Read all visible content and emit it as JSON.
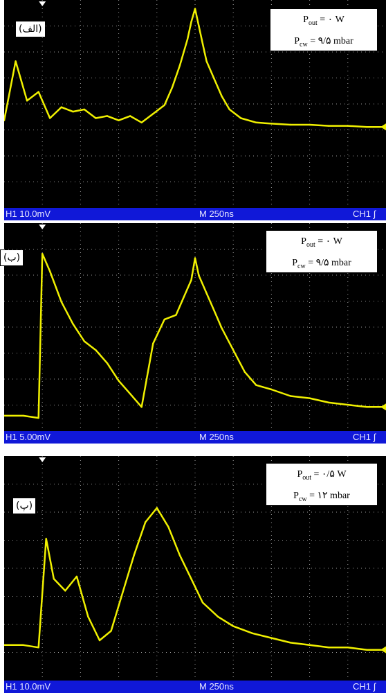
{
  "chart_data": [
    {
      "type": "line",
      "panel_label": "(الف)",
      "legend": [
        "P_out = ۰ W",
        "P_cw = ۹/۵ mbar"
      ],
      "legend_parts": {
        "p_out_sym": "P",
        "p_out_sub": "out",
        "p_out_val": "= ۰ W",
        "p_cw_sym": "P",
        "p_cw_sub": "cw",
        "p_cw_val": "= ۹/۵ mbar"
      },
      "status": {
        "channel_scale": "H1 10.0mV",
        "timebase": "M 250ns",
        "trigger": "CH1 ∫"
      },
      "color": "#f0f000",
      "x": [
        0,
        0.3,
        0.6,
        0.9,
        1.2,
        1.5,
        1.8,
        2.1,
        2.4,
        2.7,
        3.0,
        3.3,
        3.6,
        3.9,
        4.2,
        4.4,
        4.6,
        4.8,
        4.9,
        5.0,
        5.1,
        5.2,
        5.3,
        5.5,
        5.7,
        5.9,
        6.2,
        6.6,
        7.0,
        7.5,
        8.0,
        8.5,
        9.0,
        9.5,
        10.0
      ],
      "y": [
        0.5,
        3.2,
        1.4,
        1.8,
        0.6,
        1.1,
        0.9,
        1.0,
        0.6,
        0.7,
        0.5,
        0.7,
        0.4,
        0.8,
        1.2,
        2.0,
        3.0,
        4.2,
        5.0,
        5.6,
        4.8,
        4.0,
        3.2,
        2.4,
        1.6,
        1.0,
        0.6,
        0.4,
        0.35,
        0.3,
        0.3,
        0.25,
        0.25,
        0.2,
        0.2
      ],
      "xlim": [
        0,
        10
      ],
      "ylim": [
        -3.5,
        6.0
      ],
      "grid": true
    },
    {
      "type": "line",
      "panel_label": "(ب)",
      "legend": [
        "P_out = ۰ W",
        "P_cw = ۹/۵ mbar"
      ],
      "legend_parts": {
        "p_out_sym": "P",
        "p_out_sub": "out",
        "p_out_val": "= ۰ W",
        "p_cw_sym": "P",
        "p_cw_sub": "cw",
        "p_cw_val": "= ۹/۵ mbar"
      },
      "status": {
        "channel_scale": "H1 5.00mV",
        "timebase": "M 250ns",
        "trigger": "CH1 ∫"
      },
      "color": "#f0f000",
      "x": [
        0,
        0.5,
        0.9,
        1.0,
        1.2,
        1.5,
        1.8,
        2.1,
        2.4,
        2.7,
        3.0,
        3.3,
        3.6,
        3.9,
        4.2,
        4.5,
        4.7,
        4.9,
        5.0,
        5.1,
        5.3,
        5.5,
        5.7,
        6.0,
        6.3,
        6.6,
        7.0,
        7.5,
        8.0,
        8.5,
        9.0,
        9.5,
        10.0
      ],
      "y": [
        -2.8,
        -2.8,
        -2.9,
        4.6,
        3.8,
        2.4,
        1.4,
        0.6,
        0.2,
        -0.4,
        -1.2,
        -1.8,
        -2.4,
        0.5,
        1.6,
        1.8,
        2.6,
        3.4,
        4.4,
        3.6,
        2.8,
        2.0,
        1.2,
        0.2,
        -0.8,
        -1.4,
        -1.6,
        -1.9,
        -2.0,
        -2.2,
        -2.3,
        -2.4,
        -2.4
      ],
      "xlim": [
        0,
        10
      ],
      "ylim": [
        -3.5,
        6.0
      ],
      "grid": true
    },
    {
      "type": "line",
      "panel_label": "(پ)",
      "legend": [
        "P_out = ۰/۵ W",
        "P_cw = ۱۲ mbar"
      ],
      "legend_parts": {
        "p_out_sym": "P",
        "p_out_sub": "out",
        "p_out_val": "= ۰/۵ W",
        "p_cw_sym": "P",
        "p_cw_sub": "cw",
        "p_cw_val": "= ۱۲ mbar"
      },
      "status": {
        "channel_scale": "H1 10.0mV",
        "timebase": "M 250ns",
        "trigger": "CH1 ∫"
      },
      "color": "#f0f000",
      "x": [
        0,
        0.5,
        0.9,
        1.1,
        1.3,
        1.6,
        1.9,
        2.2,
        2.5,
        2.8,
        3.1,
        3.4,
        3.7,
        4.0,
        4.3,
        4.6,
        4.9,
        5.2,
        5.6,
        6.0,
        6.5,
        7.0,
        7.5,
        8.0,
        8.5,
        9.0,
        9.5,
        10.0
      ],
      "y": [
        -2.0,
        -2.0,
        -2.1,
        2.5,
        0.8,
        0.3,
        0.9,
        -0.8,
        -1.8,
        -1.4,
        0.2,
        1.8,
        3.2,
        3.8,
        3.0,
        1.8,
        0.8,
        -0.2,
        -0.8,
        -1.2,
        -1.5,
        -1.7,
        -1.9,
        -2.0,
        -2.1,
        -2.1,
        -2.2,
        -2.2
      ],
      "xlim": [
        0,
        10
      ],
      "ylim": [
        -3.5,
        6.0
      ],
      "grid": true
    }
  ]
}
